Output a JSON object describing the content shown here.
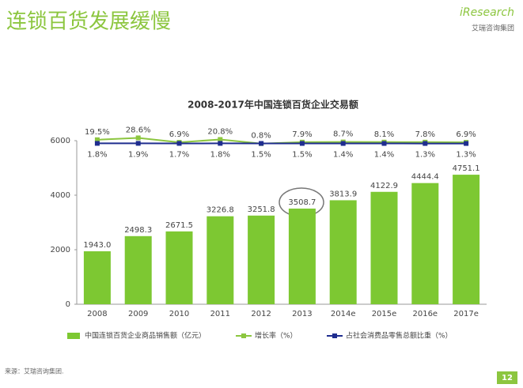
{
  "header": {
    "title": "连锁百货发展缓慢",
    "brand": "iResearch",
    "brand_sub": "艾瑞咨询集团"
  },
  "chart_data": {
    "type": "bar",
    "title": "2008-2017年中国连锁百货企业交易额",
    "categories": [
      "2008",
      "2009",
      "2010",
      "2011",
      "2012",
      "2013",
      "2014e",
      "2015e",
      "2016e",
      "2017e"
    ],
    "ylim": [
      0,
      6000
    ],
    "yticks": [
      0,
      2000,
      4000,
      6000
    ],
    "y2lim": [
      -780,
      15
    ],
    "legend": "bottom",
    "series": [
      {
        "name": "中国连锁百货企业商品销售额（亿元）",
        "type": "bar",
        "color": "#7dc832",
        "values": [
          1943,
          2498.3,
          2671.5,
          3226.8,
          3251.8,
          3508.7,
          3813.9,
          4122.9,
          4444.4,
          4751.1
        ],
        "value_labels": [
          "1943.0",
          "2498.3",
          "2671.5",
          "3226.8",
          "3251.8",
          "3508.7",
          "3813.9",
          "4122.9",
          "4444.4",
          "4751.1"
        ]
      },
      {
        "name": "增长率（%）",
        "type": "line",
        "axis": "y2",
        "color": "#8cc63f",
        "values": [
          19.5,
          28.6,
          6.9,
          20.8,
          0.8,
          7.9,
          8.7,
          8.1,
          7.8,
          6.9
        ],
        "value_labels": [
          "19.5%",
          "28.6%",
          "6.9%",
          "20.8%",
          "0.8%",
          "7.9%",
          "8.7%",
          "8.1%",
          "7.8%",
          "6.9%"
        ]
      },
      {
        "name": "占社会消费品零售总额比重（%）",
        "type": "line",
        "axis": "y2",
        "color": "#1f2d8f",
        "values": [
          1.8,
          1.9,
          1.7,
          1.8,
          1.5,
          1.5,
          1.4,
          1.4,
          1.3,
          1.3
        ],
        "value_labels": [
          "1.8%",
          "1.9%",
          "1.7%",
          "1.8%",
          "1.5%",
          "1.5%",
          "1.4%",
          "1.4%",
          "1.3%",
          "1.3%"
        ]
      }
    ]
  },
  "footer": {
    "source": "来源：艾瑞咨询集团.",
    "page": "12"
  }
}
